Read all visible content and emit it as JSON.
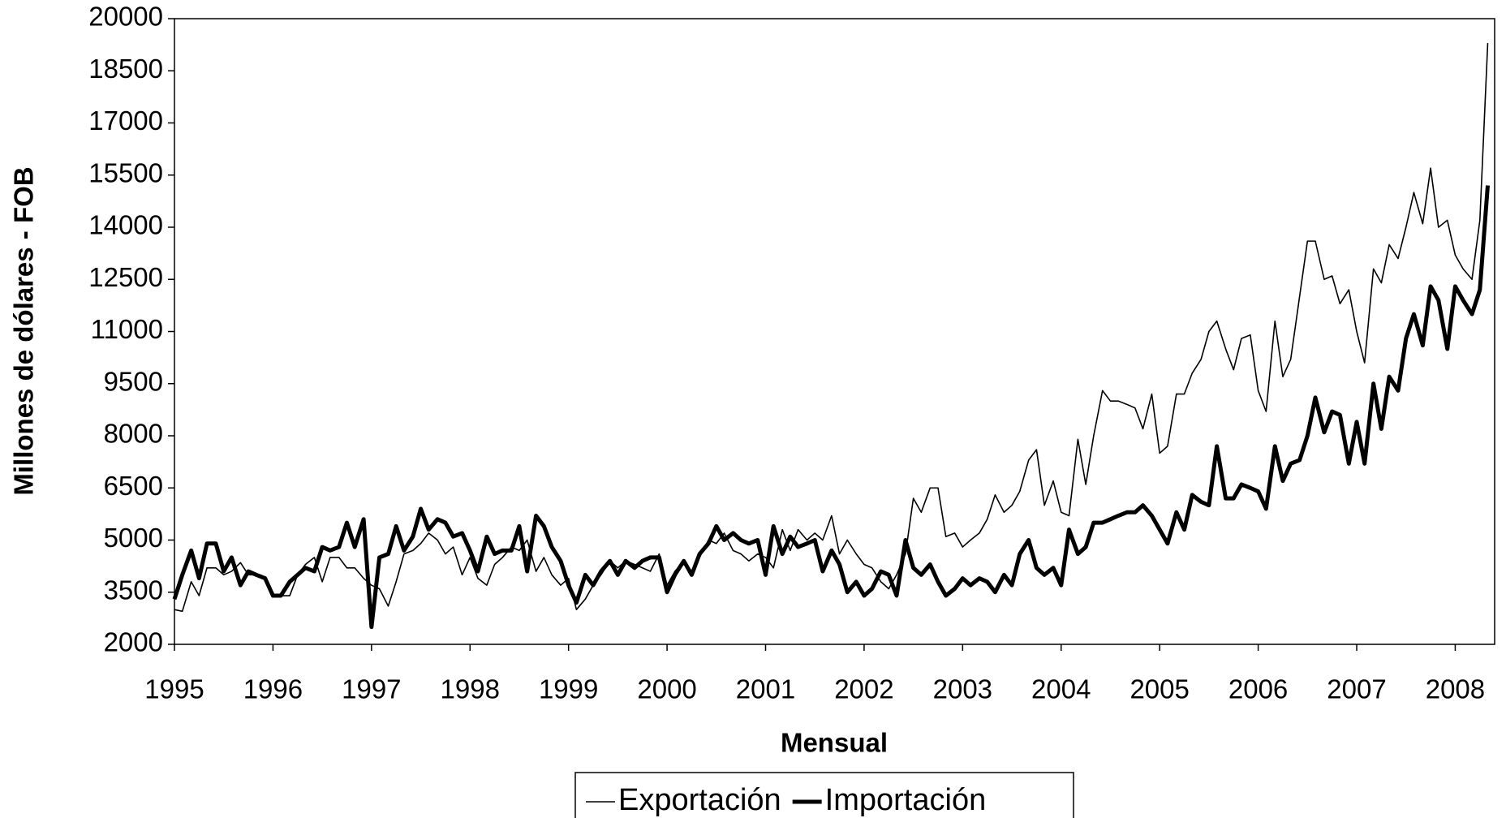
{
  "chart_data": {
    "type": "line",
    "y_label": "Millones de dólares - FOB",
    "x_label": "Mensual",
    "xlim": [
      1995,
      2008.4
    ],
    "xticks": [
      1995,
      1996,
      1997,
      1998,
      1999,
      2000,
      2001,
      2002,
      2003,
      2004,
      2005,
      2006,
      2007,
      2008
    ],
    "ylim": [
      2000,
      20000
    ],
    "yticks": [
      2000,
      3500,
      5000,
      6500,
      8000,
      9500,
      11000,
      12500,
      14000,
      15500,
      17000,
      18500,
      20000
    ],
    "grid": false,
    "legend": "bottom",
    "x": [
      1995,
      1995.08,
      1995.17,
      1995.25,
      1995.33,
      1995.42,
      1995.5,
      1995.58,
      1995.67,
      1995.75,
      1995.83,
      1995.92,
      1996,
      1996.08,
      1996.17,
      1996.25,
      1996.33,
      1996.42,
      1996.5,
      1996.58,
      1996.67,
      1996.75,
      1996.83,
      1996.92,
      1997,
      1997.08,
      1997.17,
      1997.25,
      1997.33,
      1997.42,
      1997.5,
      1997.58,
      1997.67,
      1997.75,
      1997.83,
      1997.92,
      1998,
      1998.08,
      1998.17,
      1998.25,
      1998.33,
      1998.42,
      1998.5,
      1998.58,
      1998.67,
      1998.75,
      1998.83,
      1998.92,
      1999,
      1999.08,
      1999.17,
      1999.25,
      1999.33,
      1999.42,
      1999.5,
      1999.58,
      1999.67,
      1999.75,
      1999.83,
      1999.92,
      2000,
      2000.08,
      2000.17,
      2000.25,
      2000.33,
      2000.42,
      2000.5,
      2000.58,
      2000.67,
      2000.75,
      2000.83,
      2000.92,
      2001,
      2001.08,
      2001.17,
      2001.25,
      2001.33,
      2001.42,
      2001.5,
      2001.58,
      2001.67,
      2001.75,
      2001.83,
      2001.92,
      2002,
      2002.08,
      2002.17,
      2002.25,
      2002.33,
      2002.42,
      2002.5,
      2002.58,
      2002.67,
      2002.75,
      2002.83,
      2002.92,
      2003,
      2003.08,
      2003.17,
      2003.25,
      2003.33,
      2003.42,
      2003.5,
      2003.58,
      2003.67,
      2003.75,
      2003.83,
      2003.92,
      2004,
      2004.08,
      2004.17,
      2004.25,
      2004.33,
      2004.42,
      2004.5,
      2004.58,
      2004.67,
      2004.75,
      2004.83,
      2004.92,
      2005,
      2005.08,
      2005.17,
      2005.25,
      2005.33,
      2005.42,
      2005.5,
      2005.58,
      2005.67,
      2005.75,
      2005.83,
      2005.92,
      2006,
      2006.08,
      2006.17,
      2006.25,
      2006.33,
      2006.42,
      2006.5,
      2006.58,
      2006.67,
      2006.75,
      2006.83,
      2006.92,
      2007,
      2007.08,
      2007.17,
      2007.25,
      2007.33,
      2007.42,
      2007.5,
      2007.58,
      2007.67,
      2007.75,
      2007.83,
      2007.92,
      2008,
      2008.08,
      2008.17,
      2008.25,
      2008.33
    ],
    "series": [
      {
        "name": "Exportación",
        "color": "#000000",
        "width": 1.6,
        "values": [
          3000,
          2950,
          3800,
          3400,
          4200,
          4200,
          4000,
          4100,
          4350,
          4000,
          4000,
          3900,
          3400,
          3400,
          3400,
          4000,
          4300,
          4500,
          3800,
          4500,
          4500,
          4200,
          4200,
          3900,
          3700,
          3600,
          3100,
          3800,
          4600,
          4700,
          4900,
          5200,
          5000,
          4600,
          4800,
          4000,
          4500,
          3900,
          3700,
          4300,
          4500,
          4800,
          4700,
          5000,
          4100,
          4500,
          4000,
          3700,
          3900,
          3000,
          3300,
          3700,
          4000,
          4400,
          4200,
          4400,
          4300,
          4200,
          4100,
          4600,
          3700,
          4100,
          4400,
          4100,
          4500,
          5000,
          4900,
          5200,
          4700,
          4600,
          4400,
          4600,
          4500,
          4200,
          5300,
          4700,
          5300,
          5000,
          5200,
          5000,
          5700,
          4600,
          5000,
          4600,
          4300,
          4200,
          3800,
          3600,
          4000,
          4600,
          6200,
          5800,
          6500,
          6500,
          5100,
          5200,
          4800,
          5000,
          5200,
          5600,
          6300,
          5800,
          6000,
          6400,
          7300,
          7600,
          6000,
          6700,
          5800,
          5700,
          7900,
          6600,
          8000,
          9300,
          9000,
          9000,
          8900,
          8800,
          8200,
          9200,
          7500,
          7700,
          9200,
          9200,
          9800,
          10200,
          11000,
          11300,
          10500,
          9900,
          10800,
          10900,
          9300,
          8700,
          11300,
          9700,
          10200,
          12000,
          13600,
          13600,
          12500,
          12600,
          11800,
          12200,
          11000,
          10100,
          12800,
          12400,
          13500,
          13100,
          14000,
          15000,
          14100,
          15700,
          14000,
          14200,
          13200,
          12800,
          12500,
          14200,
          19300
        ]
      },
      {
        "name": "Importación",
        "color": "#000000",
        "width": 5,
        "values": [
          3300,
          4000,
          4700,
          3900,
          4900,
          4900,
          4100,
          4500,
          3700,
          4100,
          4000,
          3900,
          3400,
          3400,
          3800,
          4000,
          4200,
          4100,
          4800,
          4700,
          4800,
          5500,
          4800,
          5600,
          2500,
          4500,
          4600,
          5400,
          4700,
          5100,
          5900,
          5300,
          5600,
          5500,
          5100,
          5200,
          4700,
          4100,
          5100,
          4600,
          4700,
          4700,
          5400,
          4100,
          5700,
          5400,
          4800,
          4400,
          3700,
          3200,
          4000,
          3700,
          4100,
          4400,
          4000,
          4400,
          4200,
          4400,
          4500,
          4500,
          3500,
          4000,
          4400,
          4000,
          4600,
          4900,
          5400,
          5000,
          5200,
          5000,
          4900,
          5000,
          4000,
          5400,
          4600,
          5100,
          4800,
          4900,
          5000,
          4100,
          4700,
          4300,
          3500,
          3800,
          3400,
          3600,
          4100,
          4000,
          3400,
          5000,
          4200,
          4000,
          4300,
          3800,
          3400,
          3600,
          3900,
          3700,
          3900,
          3800,
          3500,
          4000,
          3700,
          4600,
          5000,
          4200,
          4000,
          4200,
          3700,
          5300,
          4600,
          4800,
          5500,
          5500,
          5600,
          5700,
          5800,
          5800,
          6000,
          5700,
          5300,
          4900,
          5800,
          5300,
          6300,
          6100,
          6000,
          7700,
          6200,
          6200,
          6600,
          6500,
          6400,
          5900,
          7700,
          6700,
          7200,
          7300,
          8000,
          9100,
          8100,
          8700,
          8600,
          7200,
          8400,
          7200,
          9500,
          8200,
          9700,
          9300,
          10800,
          11500,
          10600,
          12300,
          11900,
          10500,
          12300,
          11900,
          11500,
          12200,
          15200
        ]
      }
    ]
  }
}
